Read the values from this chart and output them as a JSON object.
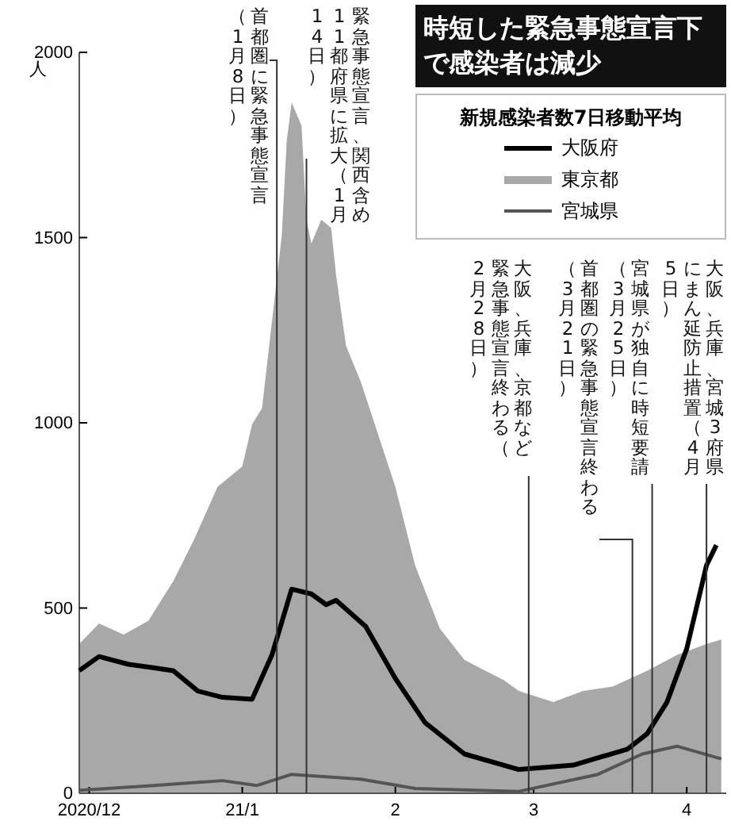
{
  "chart_data": {
    "type": "line",
    "title": "時短した緊急事態宣言下で感染者は減少",
    "ylabel": "人",
    "legend_title": "新規感染者数7日移動平均",
    "legend": "top right",
    "xlim": [
      "2020-11-29",
      "2021-04-09"
    ],
    "xticks": [
      {
        "value": "2020-12-01",
        "label": "2020/12"
      },
      {
        "value": "2021-01-01",
        "label": "21/1"
      },
      {
        "value": "2021-02-01",
        "label": "2"
      },
      {
        "value": "2021-03-01",
        "label": "3"
      },
      {
        "value": "2021-04-01",
        "label": "4"
      }
    ],
    "ylim": [
      0,
      2000
    ],
    "yticks": [
      0,
      500,
      1000,
      1500,
      2000
    ],
    "series": [
      {
        "name": "大阪府",
        "type": "line",
        "color": "#000000",
        "x": [
          "2020-11-29",
          "2020-12-03",
          "2020-12-09",
          "2020-12-14",
          "2020-12-18",
          "2020-12-23",
          "2020-12-28",
          "2021-01-03",
          "2021-01-07",
          "2021-01-11",
          "2021-01-15",
          "2021-01-18",
          "2021-01-20",
          "2021-01-26",
          "2021-02-01",
          "2021-02-07",
          "2021-02-15",
          "2021-02-26",
          "2021-03-09",
          "2021-03-20",
          "2021-03-24",
          "2021-03-28",
          "2021-04-01",
          "2021-04-05",
          "2021-04-07"
        ],
        "values": [
          331,
          369,
          348,
          339,
          331,
          276,
          259,
          254,
          373,
          551,
          538,
          509,
          521,
          450,
          310,
          191,
          106,
          64,
          76,
          119,
          161,
          246,
          390,
          615,
          670
        ]
      },
      {
        "name": "東京都",
        "type": "area",
        "color": "#a8a8a8",
        "x": [
          "2020-11-29",
          "2020-12-03",
          "2020-12-08",
          "2020-12-13",
          "2020-12-18",
          "2020-12-22",
          "2020-12-27",
          "2021-01-01",
          "2021-01-03",
          "2021-01-05",
          "2021-01-09",
          "2021-01-10",
          "2021-01-11",
          "2021-01-13",
          "2021-01-14",
          "2021-01-15",
          "2021-01-17",
          "2021-01-19",
          "2021-01-20",
          "2021-01-22",
          "2021-01-25",
          "2021-02-01",
          "2021-02-05",
          "2021-02-10",
          "2021-02-15",
          "2021-02-23",
          "2021-02-26",
          "2021-03-05",
          "2021-03-11",
          "2021-03-17",
          "2021-03-24",
          "2021-03-30",
          "2021-04-05",
          "2021-04-08"
        ],
        "values": [
          403,
          458,
          428,
          466,
          572,
          678,
          827,
          882,
          996,
          1039,
          1505,
          1760,
          1865,
          1802,
          1548,
          1484,
          1548,
          1526,
          1399,
          1208,
          1111,
          827,
          615,
          445,
          360,
          305,
          276,
          246,
          276,
          288,
          331,
          373,
          403,
          415
        ]
      },
      {
        "name": "宮城県",
        "type": "line",
        "color": "#555555",
        "x": [
          "2020-11-29",
          "2020-12-14",
          "2020-12-28",
          "2021-01-04",
          "2021-01-11",
          "2021-01-21",
          "2021-01-25",
          "2021-02-05",
          "2021-02-26",
          "2021-03-14",
          "2021-03-23",
          "2021-03-30",
          "2021-04-08"
        ],
        "values": [
          8,
          21,
          34,
          21,
          51,
          42,
          38,
          13,
          5,
          51,
          106,
          127,
          93
        ]
      }
    ],
    "ref_lines": [
      {
        "axis": "x",
        "value": "2021-01-08",
        "label": "首都圏に緊急事態宣言（1月8日）",
        "color": "#333333"
      },
      {
        "axis": "x",
        "value": "2021-01-14",
        "label": "緊急事態宣言、関西含め11都府県に拡大（1月14日）",
        "color": "#333333"
      },
      {
        "axis": "x",
        "value": "2021-02-28",
        "label": "大阪、兵庫、京都など緊急事態宣言終わる（2月28日）",
        "color": "#333333"
      },
      {
        "axis": "x",
        "value": "2021-03-21",
        "label": "首都圏の緊急事態宣言終わる（3月21日）",
        "color": "#333333"
      },
      {
        "axis": "x",
        "value": "2021-03-25",
        "label": "宮城県が独自に時短要請（3月25日）",
        "color": "#333333"
      },
      {
        "axis": "x",
        "value": "2021-04-05",
        "label": "大阪、兵庫、宮城3府県にまん延防止措置（4月5日）",
        "color": "#333333"
      }
    ]
  }
}
